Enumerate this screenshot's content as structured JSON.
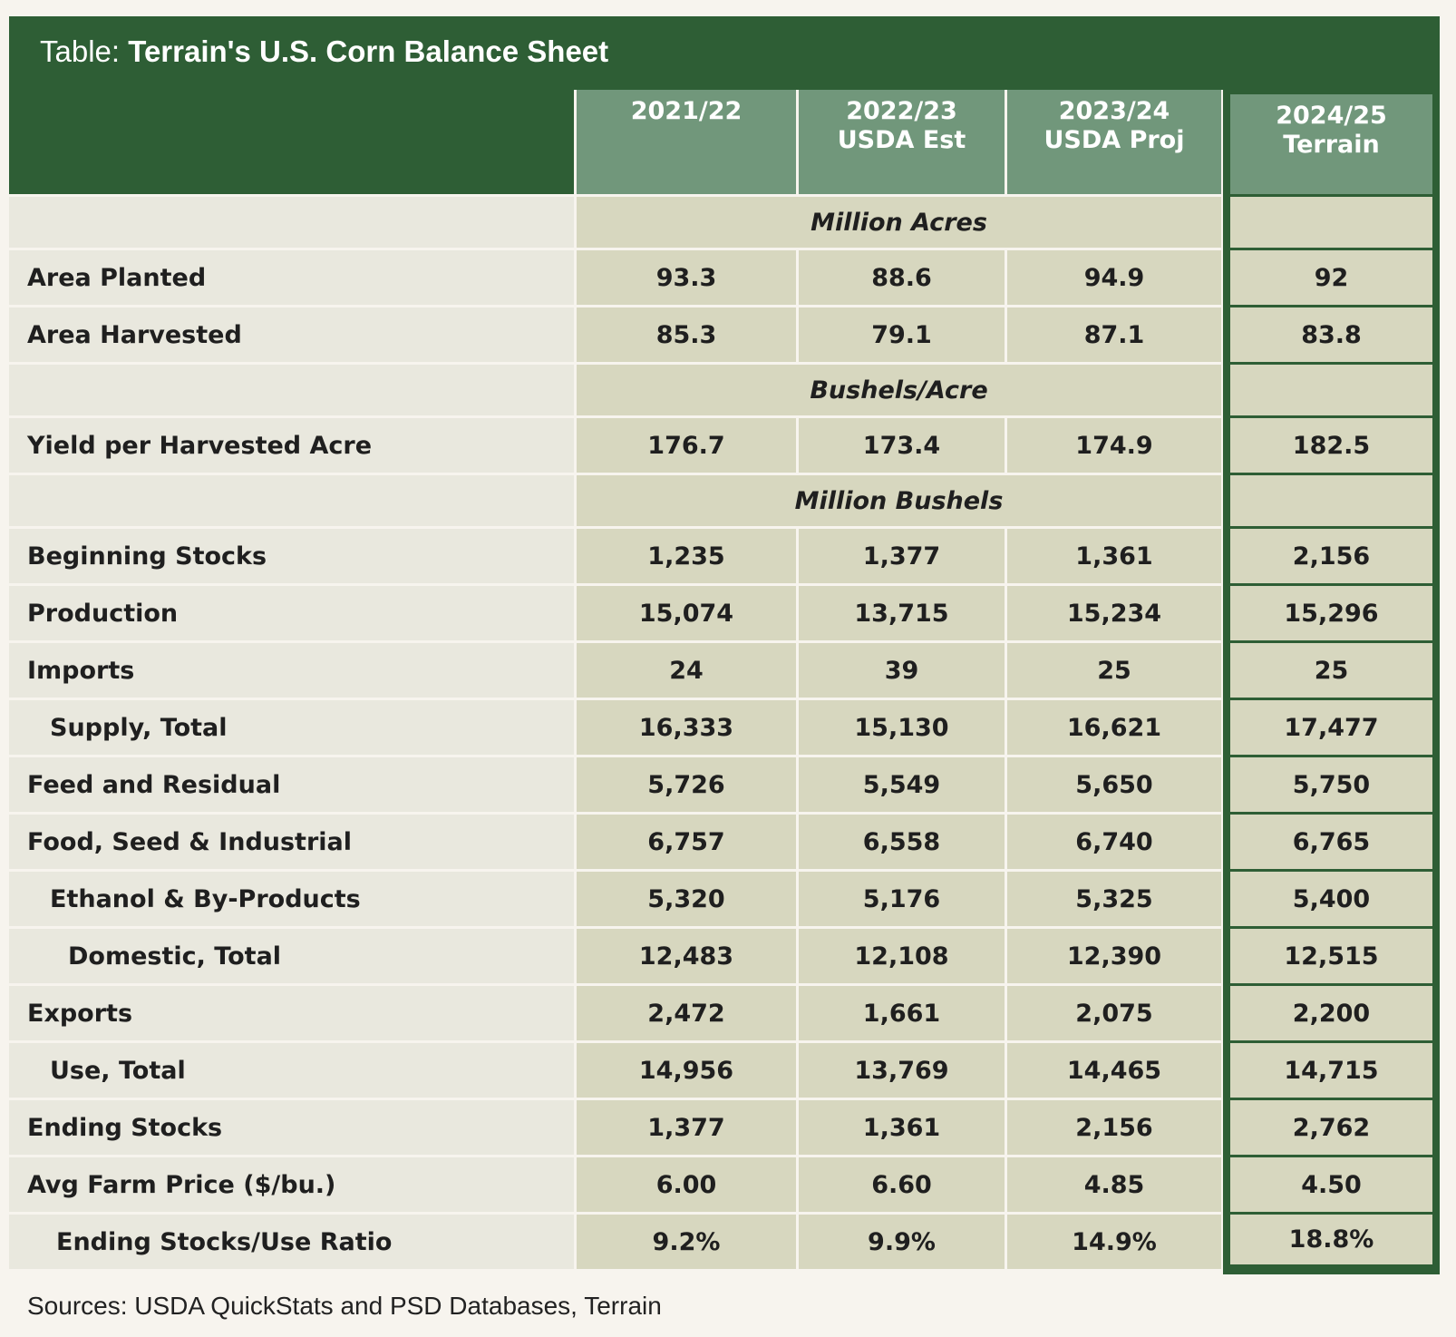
{
  "title": {
    "prefix": "Table:",
    "text": "Terrain's U.S. Corn Balance Sheet"
  },
  "table": {
    "headers": [
      [
        "2021/22"
      ],
      [
        "2022/23",
        "USDA Est"
      ],
      [
        "2023/24",
        "USDA Proj"
      ],
      [
        "2024/25",
        "Terrain"
      ]
    ],
    "rows": [
      {
        "unit": "Million Acres"
      },
      {
        "label": "Area Planted",
        "values": [
          "93.3",
          "88.6",
          "94.9",
          "92"
        ]
      },
      {
        "label": "Area Harvested",
        "values": [
          "85.3",
          "79.1",
          "87.1",
          "83.8"
        ]
      },
      {
        "unit": "Bushels/Acre"
      },
      {
        "label": "Yield per Harvested Acre",
        "values": [
          "176.7",
          "173.4",
          "174.9",
          "182.5"
        ]
      },
      {
        "unit": "Million Bushels"
      },
      {
        "label": "Beginning Stocks",
        "values": [
          "1,235",
          "1,377",
          "1,361",
          "2,156"
        ]
      },
      {
        "label": "Production",
        "values": [
          "15,074",
          "13,715",
          "15,234",
          "15,296"
        ]
      },
      {
        "label": "Imports",
        "values": [
          "24",
          "39",
          "25",
          "25"
        ]
      },
      {
        "label": "Supply, Total",
        "values": [
          "16,333",
          "15,130",
          "16,621",
          "17,477"
        ]
      },
      {
        "label": "Feed and Residual",
        "values": [
          "5,726",
          "5,549",
          "5,650",
          "5,750"
        ]
      },
      {
        "label": "Food, Seed & Industrial",
        "values": [
          "6,757",
          "6,558",
          "6,740",
          "6,765"
        ]
      },
      {
        "label": "Ethanol & By-Products",
        "values": [
          "5,320",
          "5,176",
          "5,325",
          "5,400"
        ]
      },
      {
        "label": "Domestic, Total",
        "values": [
          "12,483",
          "12,108",
          "12,390",
          "12,515"
        ]
      },
      {
        "label": "Exports",
        "values": [
          "2,472",
          "1,661",
          "2,075",
          "2,200"
        ]
      },
      {
        "label": "Use, Total",
        "values": [
          "14,956",
          "13,769",
          "14,465",
          "14,715"
        ]
      },
      {
        "label": "Ending Stocks",
        "values": [
          "1,377",
          "1,361",
          "2,156",
          "2,762"
        ]
      },
      {
        "label": "Avg Farm Price ($/bu.)",
        "values": [
          "6.00",
          "6.60",
          "4.85",
          "4.50"
        ]
      },
      {
        "label": "Ending Stocks/Use Ratio",
        "values": [
          "9.2%",
          "9.9%",
          "14.9%",
          "18.8%"
        ]
      }
    ]
  },
  "source": "Sources: USDA QuickStats and PSD Databases, Terrain"
}
